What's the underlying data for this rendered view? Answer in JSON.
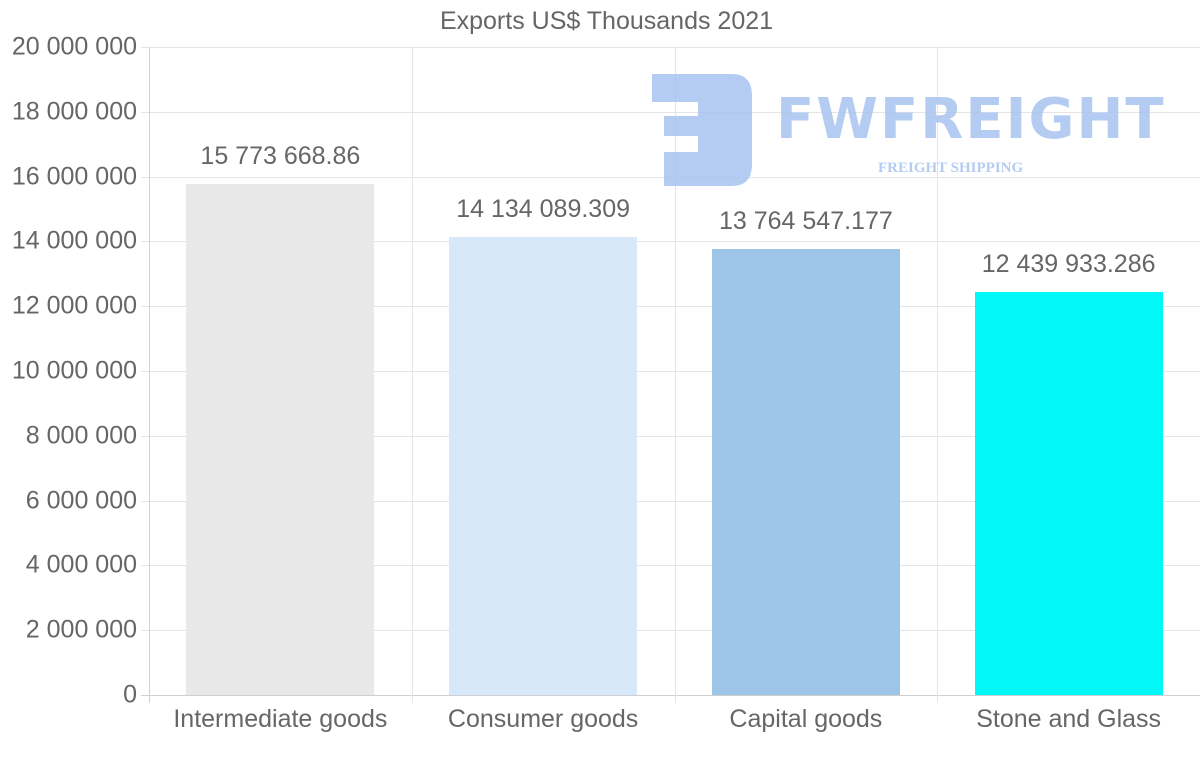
{
  "chart_data": {
    "type": "bar",
    "title": "Exports US$ Thousands 2021",
    "xlabel": "",
    "ylabel": "",
    "categories": [
      "Intermediate goods",
      "Consumer goods",
      "Capital goods",
      "Stone and Glass"
    ],
    "values": [
      15773668.86,
      14134089.309,
      13764547.177,
      12439933.286
    ],
    "data_labels": [
      "15 773 668.86",
      "14 134 089.309",
      "13 764 547.177",
      "12 439 933.286"
    ],
    "colors": [
      "#e8e8e8",
      "#d6e8fa",
      "#9cc5e8",
      "#00f8f8"
    ],
    "ylim": [
      0,
      20000000
    ],
    "yticks": [
      "0",
      "2 000 000",
      "4 000 000",
      "6 000 000",
      "8 000 000",
      "10 000 000",
      "12 000 000",
      "14 000 000",
      "16 000 000",
      "18 000 000",
      "20 000 000"
    ],
    "grid": true,
    "legend": null
  },
  "watermark": {
    "brand": "FWFREIGHT",
    "tagline": "FREIGHT SHIPPING",
    "color": "#a9c4f0"
  }
}
